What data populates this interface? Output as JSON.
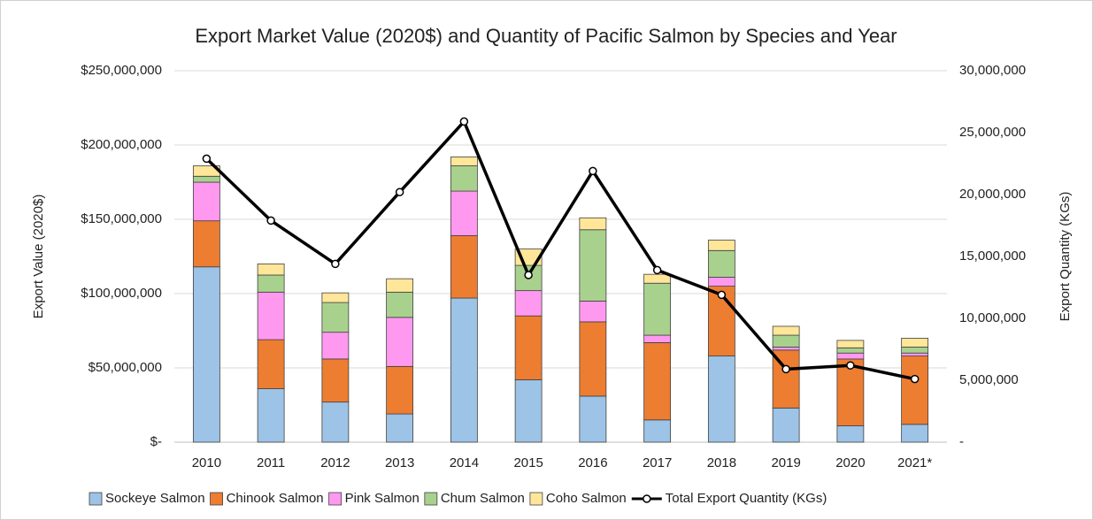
{
  "chart_data": {
    "type": "bar",
    "stacked": true,
    "title": "Export Market Value (2020$) and Quantity of Pacific Salmon by Species and Year",
    "ylabel": "Export Value (2020$)",
    "y2label": "Export Quantity (KGs)",
    "categories": [
      "2010",
      "2011",
      "2012",
      "2013",
      "2014",
      "2015",
      "2016",
      "2017",
      "2018",
      "2019",
      "2020",
      "2021*"
    ],
    "series": [
      {
        "name": "Sockeye Salmon",
        "color": "#9dc3e6",
        "values": [
          118000000,
          36000000,
          27000000,
          19000000,
          97000000,
          42000000,
          31000000,
          15000000,
          58000000,
          23000000,
          11000000,
          12000000
        ]
      },
      {
        "name": "Chinook Salmon",
        "color": "#ed7d31",
        "values": [
          31000000,
          33000000,
          29000000,
          32000000,
          42000000,
          43000000,
          50000000,
          52000000,
          47000000,
          39000000,
          45000000,
          46000000
        ]
      },
      {
        "name": "Pink Salmon",
        "color": "#ff99f0",
        "values": [
          26000000,
          32000000,
          18000000,
          33000000,
          30000000,
          17000000,
          14000000,
          5000000,
          6000000,
          2000000,
          4000000,
          2000000
        ]
      },
      {
        "name": "Chum Salmon",
        "color": "#a9d18e",
        "values": [
          4000000,
          11500000,
          20000000,
          17000000,
          17000000,
          17000000,
          48000000,
          35000000,
          18000000,
          8000000,
          3500000,
          4000000
        ]
      },
      {
        "name": "Coho Salmon",
        "color": "#ffe699",
        "values": [
          7000000,
          7500000,
          6500000,
          9000000,
          6000000,
          11000000,
          8000000,
          6000000,
          7000000,
          6000000,
          5000000,
          6000000
        ]
      },
      {
        "name": "Total Export Quantity (KGs)",
        "color": "#000000",
        "type": "line",
        "axis": "y2",
        "values": [
          22900000,
          17900000,
          14400000,
          20200000,
          25900000,
          13500000,
          21900000,
          13900000,
          11900000,
          5900000,
          6200000,
          5100000
        ]
      }
    ],
    "ylim": [
      0,
      250000000
    ],
    "yticks": [
      {
        "value": 0,
        "label": "$-"
      },
      {
        "value": 50000000,
        "label": "$50,000,000"
      },
      {
        "value": 100000000,
        "label": "$100,000,000"
      },
      {
        "value": 150000000,
        "label": "$150,000,000"
      },
      {
        "value": 200000000,
        "label": "$200,000,000"
      },
      {
        "value": 250000000,
        "label": "$250,000,000"
      }
    ],
    "y2lim": [
      0,
      30000000
    ],
    "y2ticks": [
      {
        "value": 0,
        "label": "-"
      },
      {
        "value": 5000000,
        "label": "5,000,000"
      },
      {
        "value": 10000000,
        "label": "10,000,000"
      },
      {
        "value": 15000000,
        "label": "15,000,000"
      },
      {
        "value": 20000000,
        "label": "20,000,000"
      },
      {
        "value": 25000000,
        "label": "25,000,000"
      },
      {
        "value": 30000000,
        "label": "30,000,000"
      }
    ],
    "grid": true,
    "legend": "bottom"
  }
}
